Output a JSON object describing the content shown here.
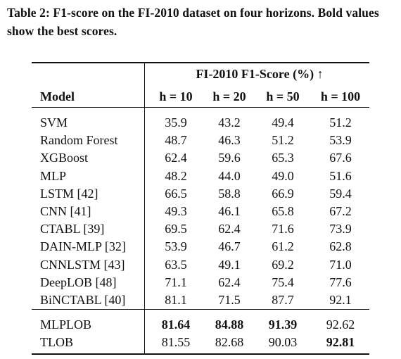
{
  "caption": "Table 2: F1-score on the FI-2010 dataset on four horizons. Bold values show the best scores.",
  "table": {
    "group_header": "FI-2010 F1-Score (%) ↑",
    "columns": [
      "Model",
      "h = 10",
      "h = 20",
      "h = 50",
      "h = 100"
    ],
    "baselines": [
      {
        "model": "SVM",
        "values": [
          "35.9",
          "43.2",
          "49.4",
          "51.2"
        ]
      },
      {
        "model": "Random Forest",
        "values": [
          "48.7",
          "46.3",
          "51.2",
          "53.9"
        ]
      },
      {
        "model": "XGBoost",
        "values": [
          "62.4",
          "59.6",
          "65.3",
          "67.6"
        ]
      },
      {
        "model": "MLP",
        "values": [
          "48.2",
          "44.0",
          "49.0",
          "51.6"
        ]
      },
      {
        "model": "LSTM [42]",
        "values": [
          "66.5",
          "58.8",
          "66.9",
          "59.4"
        ]
      },
      {
        "model": "CNN [41]",
        "values": [
          "49.3",
          "46.1",
          "65.8",
          "67.2"
        ]
      },
      {
        "model": "CTABL [39]",
        "values": [
          "69.5",
          "62.4",
          "71.6",
          "73.9"
        ]
      },
      {
        "model": "DAIN-MLP [32]",
        "values": [
          "53.9",
          "46.7",
          "61.2",
          "62.8"
        ]
      },
      {
        "model": "CNNLSTM [43]",
        "values": [
          "63.5",
          "49.1",
          "69.2",
          "71.0"
        ]
      },
      {
        "model": "DeepLOB [48]",
        "values": [
          "71.1",
          "62.4",
          "75.4",
          "77.6"
        ]
      },
      {
        "model": "BiNCTABL [40]",
        "values": [
          "81.1",
          "71.5",
          "87.7",
          "92.1"
        ]
      }
    ],
    "proposed": [
      {
        "model": "MLPLOB",
        "values": [
          "81.64",
          "84.88",
          "91.39",
          "92.62"
        ],
        "bold": [
          true,
          true,
          true,
          false
        ]
      },
      {
        "model": "TLOB",
        "values": [
          "81.55",
          "82.68",
          "90.03",
          "92.81"
        ],
        "bold": [
          false,
          false,
          false,
          true
        ]
      }
    ]
  }
}
